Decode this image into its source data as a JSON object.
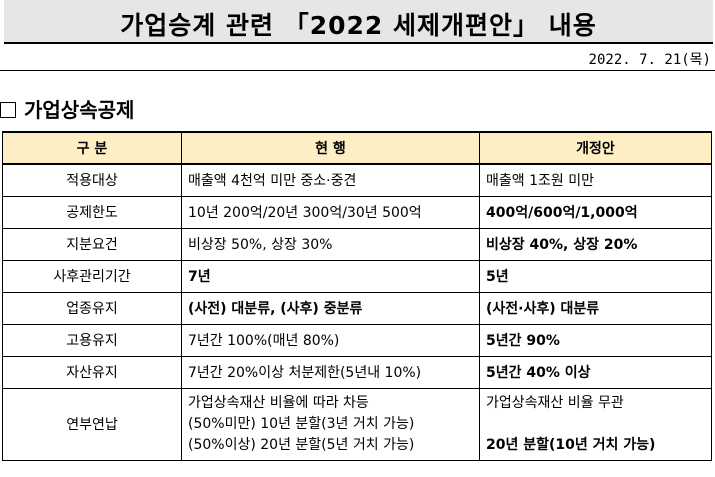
{
  "title": "가업승계 관련 「2022 세제개편안」 내용",
  "date": "2022. 7. 21(목)",
  "section_title": "가업상속공제",
  "table": {
    "headers": [
      "구 분",
      "현 행",
      "개정안"
    ],
    "rows": [
      {
        "category": "적용대상",
        "current": "매출액 4천억 미만 중소·중견",
        "proposed": "매출액 1조원 미만"
      },
      {
        "category": "공제한도",
        "current": "10년 200억/20년 300억/30년 500억",
        "proposed": "400억/600억/1,000억"
      },
      {
        "category": "지분요건",
        "current": "비상장 50%, 상장 30%",
        "proposed": "비상장 40%, 상장 20%"
      },
      {
        "category": "사후관리기간",
        "current": "7년",
        "proposed": "5년"
      },
      {
        "category": "업종유지",
        "current": "(사전) 대분류, (사후) 중분류",
        "proposed": "(사전·사후) 대분류"
      },
      {
        "category": "고용유지",
        "current": "7년간 100%(매년 80%)",
        "proposed": "5년간 90%"
      },
      {
        "category": "자산유지",
        "current": "7년간 20%이상 처분제한(5년내 10%)",
        "proposed": "5년간 40% 이상"
      }
    ],
    "last_row": {
      "category": "연부연납",
      "current_lines": [
        "가업상속재산 비율에 따라 차등",
        "(50%미만) 10년 분할(3년 거치 가능)",
        "(50%이상) 20년 분할(5년 거치 가능)"
      ],
      "proposed_lines": [
        "가업상속재산 비율 무관",
        "20년 분할(10년 거치 가능)"
      ]
    }
  }
}
